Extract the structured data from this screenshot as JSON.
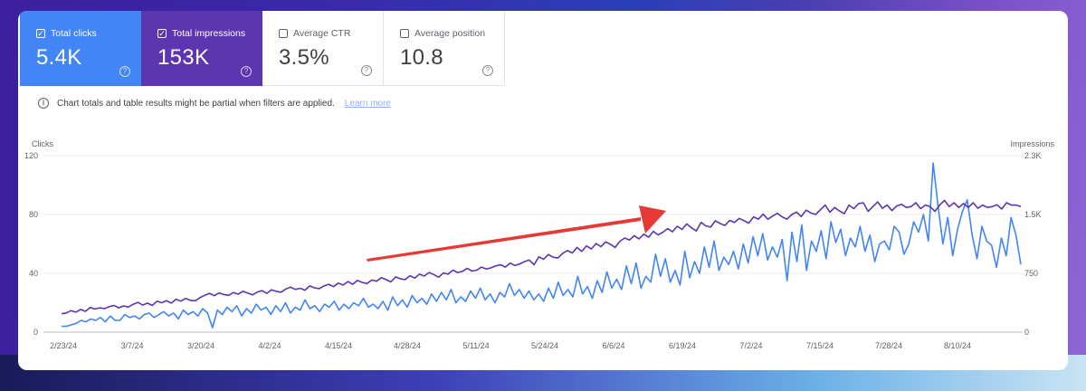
{
  "metrics": {
    "clicks": {
      "label": "Total clicks",
      "value": "5.4K",
      "checked": true
    },
    "impressions": {
      "label": "Total impressions",
      "value": "153K",
      "checked": true
    },
    "ctr": {
      "label": "Average CTR",
      "value": "3.5%",
      "checked": false
    },
    "position": {
      "label": "Average position",
      "value": "10.8",
      "checked": false
    }
  },
  "notice": {
    "text": "Chart totals and table results might be partial when filters are applied.",
    "link": "Learn more"
  },
  "icons": {
    "checkbox_checked": "check-icon",
    "help": "help-circle-icon",
    "info": "info-icon"
  },
  "colors": {
    "clicks": "#4285f4",
    "impressions": "#5e35b1",
    "annotation_arrow": "#e53935"
  },
  "chart_data": {
    "type": "line",
    "left_axis_title": "Clicks",
    "right_axis_title": "Impressions",
    "left_ticks": [
      "0",
      "40",
      "80",
      "120"
    ],
    "right_ticks": [
      "0",
      "750",
      "1.5K",
      "2.3K"
    ],
    "left_ylim": [
      0,
      120
    ],
    "right_ylim": [
      0,
      2250
    ],
    "x_ticks": [
      "2/23/24",
      "3/7/24",
      "3/20/24",
      "4/2/24",
      "4/15/24",
      "4/28/24",
      "5/11/24",
      "5/24/24",
      "6/6/24",
      "6/19/24",
      "7/2/24",
      "7/15/24",
      "7/28/24",
      "8/10/24"
    ],
    "grid": true,
    "annotation": "red arrow pointing up and to the right",
    "series": [
      {
        "name": "Total clicks",
        "axis": "left",
        "color": "#4285f4",
        "values": [
          4,
          4,
          5,
          6,
          8,
          7,
          9,
          8,
          10,
          7,
          11,
          8,
          8,
          12,
          10,
          11,
          9,
          12,
          13,
          10,
          12,
          14,
          11,
          13,
          9,
          15,
          12,
          14,
          11,
          16,
          13,
          3,
          15,
          12,
          17,
          14,
          18,
          11,
          16,
          13,
          19,
          15,
          17,
          12,
          18,
          14,
          20,
          13,
          17,
          15,
          22,
          16,
          18,
          14,
          19,
          17,
          21,
          15,
          19,
          16,
          20,
          18,
          23,
          17,
          19,
          16,
          21,
          15,
          24,
          18,
          22,
          17,
          25,
          20,
          23,
          19,
          26,
          21,
          27,
          22,
          29,
          20,
          24,
          21,
          28,
          23,
          30,
          22,
          26,
          20,
          27,
          24,
          33,
          25,
          29,
          23,
          28,
          22,
          26,
          21,
          30,
          23,
          34,
          25,
          29,
          24,
          38,
          26,
          31,
          23,
          35,
          27,
          41,
          30,
          36,
          29,
          45,
          33,
          47,
          30,
          38,
          34,
          53,
          38,
          50,
          34,
          42,
          32,
          55,
          37,
          48,
          40,
          58,
          44,
          62,
          42,
          51,
          46,
          55,
          43,
          60,
          47,
          65,
          52,
          67,
          49,
          58,
          51,
          63,
          35,
          68,
          48,
          73,
          42,
          62,
          55,
          69,
          50,
          75,
          61,
          70,
          52,
          64,
          58,
          72,
          55,
          66,
          48,
          60,
          62,
          56,
          72,
          68,
          53,
          60,
          75,
          68,
          80,
          62,
          115,
          86,
          60,
          78,
          52,
          70,
          82,
          90,
          66,
          50,
          72,
          62,
          59,
          44,
          64,
          52,
          78,
          66,
          46
        ]
      },
      {
        "name": "Total impressions",
        "axis": "right",
        "color": "#5e35b1",
        "values": [
          235,
          245,
          275,
          255,
          290,
          265,
          315,
          295,
          310,
          300,
          325,
          340,
          310,
          335,
          320,
          355,
          380,
          345,
          370,
          340,
          395,
          375,
          400,
          370,
          420,
          395,
          430,
          405,
          400,
          440,
          470,
          495,
          465,
          500,
          480,
          470,
          505,
          485,
          520,
          500,
          475,
          510,
          530,
          495,
          540,
          520,
          510,
          550,
          575,
          545,
          560,
          535,
          590,
          565,
          555,
          590,
          610,
          580,
          625,
          600,
          645,
          610,
          660,
          635,
          620,
          665,
          650,
          695,
          670,
          640,
          705,
          680,
          670,
          720,
          690,
          740,
          715,
          760,
          735,
          700,
          755,
          740,
          790,
          760,
          775,
          815,
          780,
          790,
          830,
          805,
          820,
          845,
          860,
          830,
          880,
          850,
          870,
          900,
          920,
          860,
          960,
          930,
          990,
          955,
          945,
          1005,
          1040,
          1010,
          1080,
          1030,
          1100,
          1060,
          1130,
          1090,
          1150,
          1120,
          1080,
          1160,
          1200,
          1175,
          1230,
          1190,
          1250,
          1210,
          1285,
          1240,
          1275,
          1320,
          1280,
          1350,
          1310,
          1380,
          1330,
          1290,
          1400,
          1355,
          1340,
          1420,
          1385,
          1360,
          1425,
          1400,
          1450,
          1420,
          1390,
          1470,
          1440,
          1505,
          1440,
          1480,
          1515,
          1470,
          1440,
          1500,
          1530,
          1475,
          1555,
          1520,
          1500,
          1560,
          1620,
          1530,
          1590,
          1545,
          1510,
          1620,
          1575,
          1640,
          1650,
          1540,
          1600,
          1660,
          1580,
          1620,
          1550,
          1610,
          1630,
          1590,
          1600,
          1650,
          1575,
          1620,
          1600,
          1540,
          1620,
          1680,
          1600,
          1650,
          1590,
          1640,
          1590,
          1650,
          1580,
          1620,
          1590,
          1600,
          1625,
          1570,
          1650,
          1620,
          1620,
          1600
        ]
      }
    ]
  }
}
